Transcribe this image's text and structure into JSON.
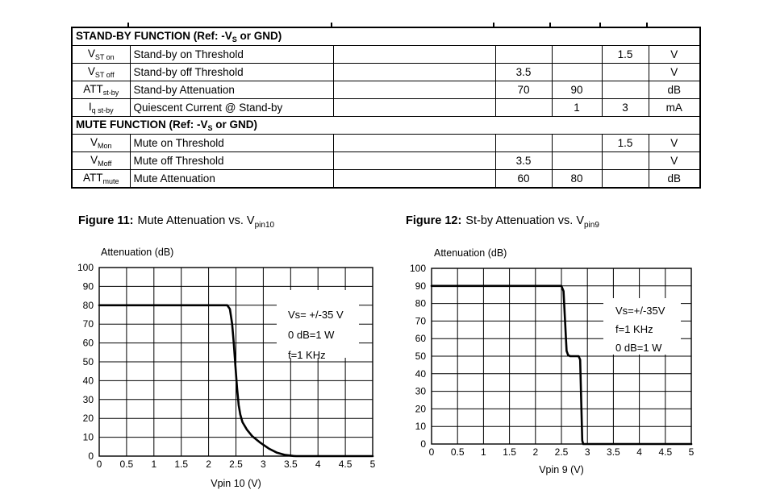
{
  "colors": {
    "ink": "#000000",
    "background": "#ffffff"
  },
  "table": {
    "sections": [
      {
        "header": {
          "pre": "STAND-BY FUNCTION (Ref: -V",
          "sub": "S",
          "post": " or GND)"
        },
        "rows": [
          {
            "sym": "V",
            "sub": "ST on",
            "parameter": "Stand-by on Threshold",
            "cond": "",
            "min": "",
            "typ": "",
            "max": "1.5",
            "unit": "V"
          },
          {
            "sym": "V",
            "sub": "ST off",
            "parameter": "Stand-by off Threshold",
            "cond": "",
            "min": "3.5",
            "typ": "",
            "max": "",
            "unit": "V"
          },
          {
            "sym": "ATT",
            "sub": "st-by",
            "parameter": "Stand-by Attenuation",
            "cond": "",
            "min": "70",
            "typ": "90",
            "max": "",
            "unit": "dB"
          },
          {
            "sym": "I",
            "sub": "q st-by",
            "parameter": "Quiescent Current @ Stand-by",
            "cond": "",
            "min": "",
            "typ": "1",
            "max": "3",
            "unit": "mA"
          }
        ]
      },
      {
        "header": {
          "pre": "MUTE FUNCTION (Ref: -V",
          "sub": "S",
          "post": " or GND)"
        },
        "rows": [
          {
            "sym": "V",
            "sub": "Mon",
            "parameter": "Mute on Threshold",
            "cond": "",
            "min": "",
            "typ": "",
            "max": "1.5",
            "unit": "V"
          },
          {
            "sym": "V",
            "sub": "Moff",
            "parameter": "Mute off Threshold",
            "cond": "",
            "min": "3.5",
            "typ": "",
            "max": "",
            "unit": "V"
          },
          {
            "sym": "ATT",
            "sub": "mute",
            "parameter": "Mute Attenuation",
            "cond": "",
            "min": "60",
            "typ": "80",
            "max": "",
            "unit": "dB"
          }
        ]
      }
    ]
  },
  "figures": [
    {
      "label": "Figure 11:",
      "caption": "Mute Attenuation vs. V",
      "caption_sub": "pin10"
    },
    {
      "label": "Figure 12:",
      "caption": "St-by Attenuation vs. V",
      "caption_sub": "pin9"
    }
  ],
  "chart_data": [
    {
      "type": "line",
      "title": "Figure 11: Mute Attenuation vs. Vpin10",
      "xlabel": "Vpin 10 (V)",
      "ylabel": "Attenuation  (dB)",
      "xlim": [
        0,
        5
      ],
      "ylim": [
        0,
        100
      ],
      "xtick_step": 0.5,
      "ytick_step": 10,
      "grid": true,
      "legend_position": "none",
      "annotations": [
        "Vs= +/-35 V",
        "0 dB=1 W",
        "f=1 KHz"
      ],
      "series": [
        {
          "name": "mute-attenuation",
          "points": [
            [
              0,
              80
            ],
            [
              2.34,
              80
            ],
            [
              2.39,
              78
            ],
            [
              2.43,
              70
            ],
            [
              2.46,
              60
            ],
            [
              2.49,
              48
            ],
            [
              2.52,
              36
            ],
            [
              2.55,
              27
            ],
            [
              2.58,
              22
            ],
            [
              2.62,
              18
            ],
            [
              2.7,
              14
            ],
            [
              2.8,
              10.5
            ],
            [
              2.95,
              7
            ],
            [
              3.1,
              4
            ],
            [
              3.25,
              1.8
            ],
            [
              3.4,
              0.6
            ],
            [
              3.55,
              0.1
            ],
            [
              3.6,
              0
            ],
            [
              5,
              0
            ]
          ]
        }
      ]
    },
    {
      "type": "line",
      "title": "Figure 12: St-by Attenuation vs. Vpin9",
      "xlabel": "Vpin 9  (V)",
      "ylabel": "Attenuation  (dB)",
      "xlim": [
        0,
        5
      ],
      "ylim": [
        0,
        100
      ],
      "xtick_step": 0.5,
      "ytick_step": 10,
      "grid": true,
      "legend_position": "none",
      "annotations": [
        "Vs=+/-35V",
        "f=1 KHz",
        "0 dB=1 W"
      ],
      "series": [
        {
          "name": "stby-attenuation",
          "points": [
            [
              0,
              90
            ],
            [
              2.5,
              90
            ],
            [
              2.54,
              87
            ],
            [
              2.57,
              70
            ],
            [
              2.6,
              53
            ],
            [
              2.63,
              50.5
            ],
            [
              2.67,
              50
            ],
            [
              2.83,
              50
            ],
            [
              2.86,
              48
            ],
            [
              2.88,
              25
            ],
            [
              2.9,
              2
            ],
            [
              2.92,
              0
            ],
            [
              5,
              0
            ]
          ]
        }
      ]
    }
  ]
}
